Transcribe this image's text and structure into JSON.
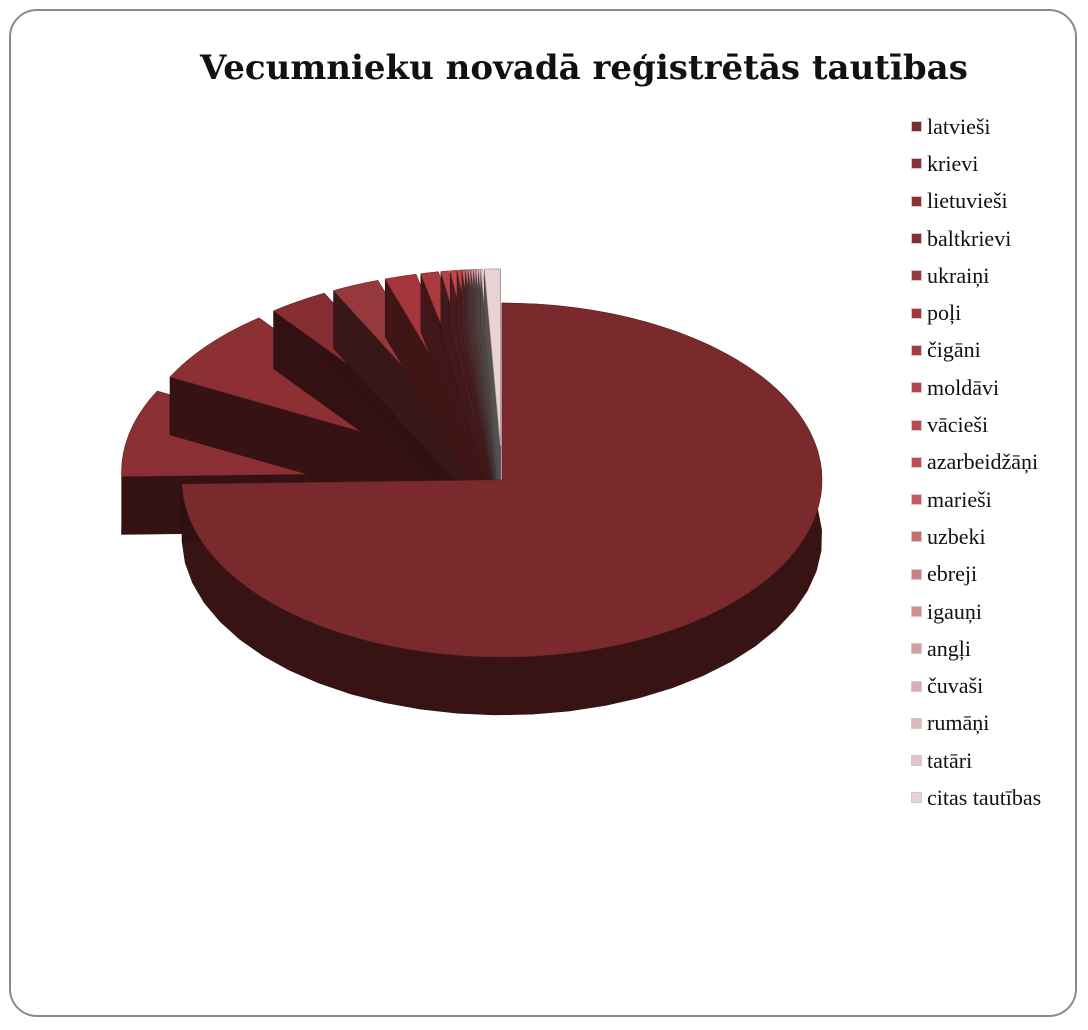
{
  "chart_data": {
    "type": "pie",
    "title": "Vecumnieku novadā reģistrētās tautības",
    "legend_position": "right",
    "categories": [
      "latvieši",
      "krievi",
      "lietuvieši",
      "baltkrievi",
      "ukraiņi",
      "poļi",
      "čigāni",
      "moldāvi",
      "vācieši",
      "azarbeidžāņi",
      "marieši",
      "uzbeki",
      "ebreji",
      "igauņi",
      "angļi",
      "čuvaši",
      "rumāņi",
      "tatāri",
      "citas tautības"
    ],
    "values": [
      75.0,
      8.0,
      7.0,
      3.0,
      2.4,
      1.6,
      0.9,
      0.4,
      0.3,
      0.2,
      0.15,
      0.12,
      0.12,
      0.11,
      0.1,
      0.1,
      0.1,
      0.1,
      0.8
    ],
    "colors": [
      "#7a2a2d",
      "#8a2f33",
      "#8d3034",
      "#862e31",
      "#96393c",
      "#a5363b",
      "#a93b3f",
      "#b1454a",
      "#bb4a4e",
      "#c04a50",
      "#c45a60",
      "#c86e73",
      "#cc7e83",
      "#d18e92",
      "#d59ea2",
      "#d9aeb1",
      "#ddb8bb",
      "#e2c4c6",
      "#e8d2d3"
    ]
  }
}
